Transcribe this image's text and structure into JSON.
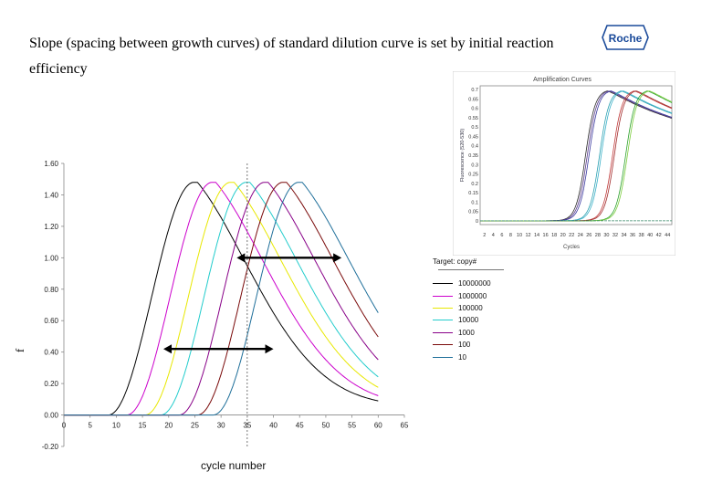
{
  "slide": {
    "title": "Slope (spacing between growth curves) of standard dilution curve is set by initial reaction efficiency",
    "logo_text": "Roche"
  },
  "chart_data": [
    {
      "type": "line",
      "id": "main",
      "xlabel": "cycle number",
      "ylabel": "f",
      "xlim": [
        0,
        65
      ],
      "ylim": [
        -0.2,
        1.6
      ],
      "x_ticks": [
        0,
        5,
        10,
        15,
        20,
        25,
        30,
        35,
        40,
        45,
        50,
        55,
        60,
        65
      ],
      "y_ticks": [
        {
          "v": -0.2,
          "t": "-0.20"
        },
        {
          "v": 0,
          "t": "0.00"
        },
        {
          "v": 0.2,
          "t": "0.20"
        },
        {
          "v": 0.4,
          "t": "0.40"
        },
        {
          "v": 0.6,
          "t": "0.60"
        },
        {
          "v": 0.8,
          "t": "0.80"
        },
        {
          "v": 1.0,
          "t": "1.00"
        },
        {
          "v": 1.2,
          "t": "1.20"
        },
        {
          "v": 1.4,
          "t": "1.40"
        },
        {
          "v": 1.6,
          "t": "1.60"
        }
      ],
      "vline_x": 35,
      "arrows": [
        {
          "y": 1.0,
          "x1": 33,
          "x2": 53
        },
        {
          "y": 0.42,
          "x1": 19,
          "x2": 40
        }
      ],
      "series": [
        {
          "name": "10000000",
          "color": "#000000",
          "peak_x": 25.5,
          "peak_y": 1.48
        },
        {
          "name": "1000000",
          "color": "#cc00cc",
          "peak_x": 29,
          "peak_y": 1.48
        },
        {
          "name": "100000",
          "color": "#e8e800",
          "peak_x": 32.5,
          "peak_y": 1.48
        },
        {
          "name": "10000",
          "color": "#22cccc",
          "peak_x": 35.5,
          "peak_y": 1.48
        },
        {
          "name": "1000",
          "color": "#880088",
          "peak_x": 39,
          "peak_y": 1.48
        },
        {
          "name": "100",
          "color": "#7a0a0a",
          "peak_x": 42.5,
          "peak_y": 1.48
        },
        {
          "name": "10",
          "color": "#1f6f9a",
          "peak_x": 45.5,
          "peak_y": 1.48
        }
      ],
      "legend": {
        "title": "Target: copy#",
        "position": "right"
      }
    },
    {
      "type": "line",
      "id": "inset",
      "title": "Amplification Curves",
      "xlabel": "Cycles",
      "ylabel": "Fluorescence (520-530)",
      "xlim": [
        1,
        45
      ],
      "ylim": [
        -0.02,
        0.72
      ],
      "x_ticks": [
        2,
        4,
        6,
        8,
        10,
        12,
        14,
        16,
        18,
        20,
        22,
        24,
        26,
        28,
        30,
        32,
        34,
        36,
        38,
        40,
        42,
        44
      ],
      "y_ticks": [
        "0.7",
        "0.65",
        "0.6",
        "0.55",
        "0.5",
        "0.45",
        "0.4",
        "0.35",
        "0.3",
        "0.25",
        "0.2",
        "0.15",
        "0.1",
        "0.05",
        "0"
      ],
      "y_tick_values": [
        0.7,
        0.65,
        0.6,
        0.55,
        0.5,
        0.45,
        0.4,
        0.35,
        0.3,
        0.25,
        0.2,
        0.15,
        0.1,
        0.05,
        0
      ],
      "series": [
        {
          "mid": 25.2,
          "color": "#2a2a2a"
        },
        {
          "mid": 25.6,
          "color": "#5a3a8a"
        },
        {
          "mid": 26.0,
          "color": "#3a3aa0"
        },
        {
          "mid": 28.4,
          "color": "#2aa0b0"
        },
        {
          "mid": 28.8,
          "color": "#3ab0c8"
        },
        {
          "mid": 31.4,
          "color": "#c03a3a"
        },
        {
          "mid": 31.8,
          "color": "#a02a2a"
        },
        {
          "mid": 34.4,
          "color": "#2aa02a"
        },
        {
          "mid": 34.8,
          "color": "#7acc3a"
        }
      ]
    }
  ]
}
